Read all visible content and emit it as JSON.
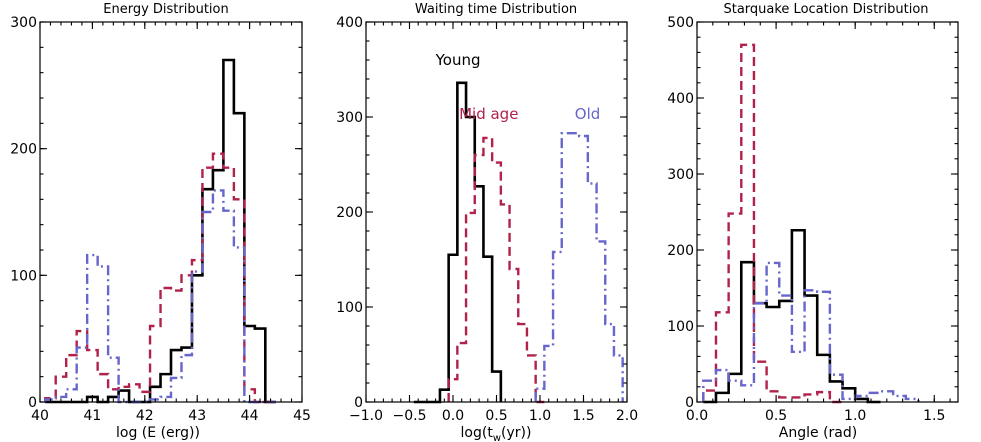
{
  "colors": {
    "young": "#000000",
    "mid": "#b0224a",
    "old": "#6666cc"
  },
  "chart_data": [
    {
      "type": "histogram",
      "title": "Energy Distribution",
      "xlabel": "log (E (erg))",
      "ylabel": "",
      "xlim": [
        40,
        45
      ],
      "ylim": [
        0,
        300
      ],
      "xticks": [
        40,
        41,
        42,
        43,
        44,
        45
      ],
      "yticks": [
        0,
        100,
        200,
        300
      ],
      "xtick_labels": [
        "40",
        "41",
        "42",
        "43",
        "44",
        "45"
      ],
      "ytick_labels": [
        "0",
        "100",
        "200",
        "300"
      ],
      "bin_width": 0.2,
      "annotations": [],
      "series": [
        {
          "key": "young",
          "style": "solid",
          "x": [
            40.2,
            40.4,
            40.6,
            40.8,
            41.0,
            41.2,
            41.4,
            41.6,
            41.8,
            42.0,
            42.2,
            42.4,
            42.6,
            42.8,
            43.0,
            43.2,
            43.4,
            43.6,
            43.8,
            44.0,
            44.2,
            44.4
          ],
          "values": [
            0,
            0,
            0,
            0,
            4,
            0,
            4,
            9,
            0,
            0,
            12,
            22,
            41,
            43,
            100,
            168,
            183,
            270,
            228,
            60,
            58,
            0
          ]
        },
        {
          "key": "mid",
          "style": "dashed",
          "x": [
            40.2,
            40.4,
            40.6,
            40.8,
            41.0,
            41.2,
            41.4,
            41.6,
            41.8,
            42.0,
            42.2,
            42.4,
            42.6,
            42.8,
            43.0,
            43.2,
            43.4,
            43.6,
            43.8,
            44.0,
            44.2,
            44.4
          ],
          "values": [
            3,
            20,
            37,
            56,
            41,
            22,
            10,
            12,
            14,
            8,
            60,
            90,
            88,
            100,
            112,
            185,
            196,
            185,
            160,
            10,
            0,
            0
          ]
        },
        {
          "key": "old",
          "style": "dashdot",
          "x": [
            40.2,
            40.4,
            40.6,
            40.8,
            41.0,
            41.2,
            41.4,
            41.6,
            41.8,
            42.0,
            42.2,
            42.4,
            42.6,
            42.8,
            43.0,
            43.2,
            43.4,
            43.6,
            43.8,
            44.0,
            44.2,
            44.4
          ],
          "values": [
            2,
            4,
            10,
            43,
            116,
            107,
            35,
            0,
            0,
            0,
            2,
            4,
            19,
            37,
            103,
            150,
            167,
            151,
            122,
            0,
            0,
            0
          ]
        }
      ]
    },
    {
      "type": "histogram",
      "title": "Waiting time Distribution",
      "xlabel": "log(t",
      "xlabel_sub": "w",
      "xlabel_end": "(yr))",
      "ylabel": "",
      "xlim": [
        -1.0,
        2.0
      ],
      "ylim": [
        0,
        400
      ],
      "xticks": [
        -1.0,
        -0.5,
        0.0,
        0.5,
        1.0,
        1.5,
        2.0
      ],
      "yticks": [
        0,
        100,
        200,
        300,
        400
      ],
      "xtick_labels": [
        "−1.0",
        "−0.5",
        "0.0",
        "0.5",
        "1.0",
        "1.5",
        "2.0"
      ],
      "ytick_labels": [
        "0",
        "100",
        "200",
        "300",
        "400"
      ],
      "bin_width": 0.1,
      "annotations": [
        {
          "key": "young",
          "text": "Young",
          "x": -0.2,
          "y": 355
        },
        {
          "key": "mid",
          "text": "Mid age",
          "x": 0.07,
          "y": 298
        },
        {
          "key": "old",
          "text": "Old",
          "x": 1.4,
          "y": 298
        }
      ],
      "series": [
        {
          "key": "young",
          "style": "solid",
          "x": [
            -0.4,
            -0.3,
            -0.2,
            -0.1,
            0.0,
            0.1,
            0.2,
            0.3,
            0.4,
            0.5
          ],
          "values": [
            0,
            0,
            0,
            13,
            155,
            336,
            300,
            227,
            153,
            32
          ]
        },
        {
          "key": "mid",
          "style": "dashed",
          "x": [
            0.0,
            0.1,
            0.2,
            0.3,
            0.4,
            0.5,
            0.6,
            0.7,
            0.8,
            0.9,
            1.0
          ],
          "values": [
            24,
            62,
            199,
            260,
            278,
            252,
            208,
            140,
            82,
            49,
            0
          ]
        },
        {
          "key": "old",
          "style": "dashdot",
          "x": [
            1.0,
            1.1,
            1.2,
            1.3,
            1.4,
            1.5,
            1.6,
            1.7,
            1.8,
            1.9
          ],
          "values": [
            14,
            59,
            158,
            283,
            283,
            280,
            230,
            169,
            82,
            49
          ]
        }
      ]
    },
    {
      "type": "histogram",
      "title": "Starquake Location Distribution",
      "xlabel": "Angle (rad)",
      "ylabel": "",
      "xlim": [
        0.0,
        1.65
      ],
      "ylim": [
        0,
        500
      ],
      "xticks": [
        0.0,
        0.5,
        1.0,
        1.5
      ],
      "yticks": [
        0,
        100,
        200,
        300,
        400,
        500
      ],
      "xtick_labels": [
        "0.0",
        "0.5",
        "1.0",
        "1.5"
      ],
      "ytick_labels": [
        "0",
        "100",
        "200",
        "300",
        "400",
        "500"
      ],
      "bin_width": 0.08,
      "annotations": [],
      "series": [
        {
          "key": "young",
          "style": "solid",
          "x": [
            0.08,
            0.16,
            0.24,
            0.32,
            0.4,
            0.48,
            0.56,
            0.64,
            0.72,
            0.8,
            0.88,
            0.96,
            1.04,
            1.12
          ],
          "values": [
            0,
            12,
            37,
            184,
            130,
            125,
            133,
            226,
            140,
            62,
            27,
            18,
            4,
            0
          ]
        },
        {
          "key": "mid",
          "style": "dashed",
          "x": [
            0.08,
            0.16,
            0.24,
            0.32,
            0.4,
            0.48,
            0.56,
            0.64,
            0.72,
            0.8,
            0.88
          ],
          "values": [
            15,
            118,
            248,
            470,
            53,
            14,
            6,
            6,
            10,
            13,
            0
          ]
        },
        {
          "key": "old",
          "style": "dashdot",
          "x": [
            0.08,
            0.16,
            0.24,
            0.32,
            0.4,
            0.48,
            0.56,
            0.64,
            0.72,
            0.8,
            0.88,
            0.96,
            1.04,
            1.12,
            1.2,
            1.28,
            1.36
          ],
          "values": [
            28,
            42,
            28,
            22,
            130,
            183,
            140,
            66,
            147,
            145,
            36,
            4,
            8,
            12,
            14,
            8,
            4
          ]
        }
      ]
    }
  ]
}
